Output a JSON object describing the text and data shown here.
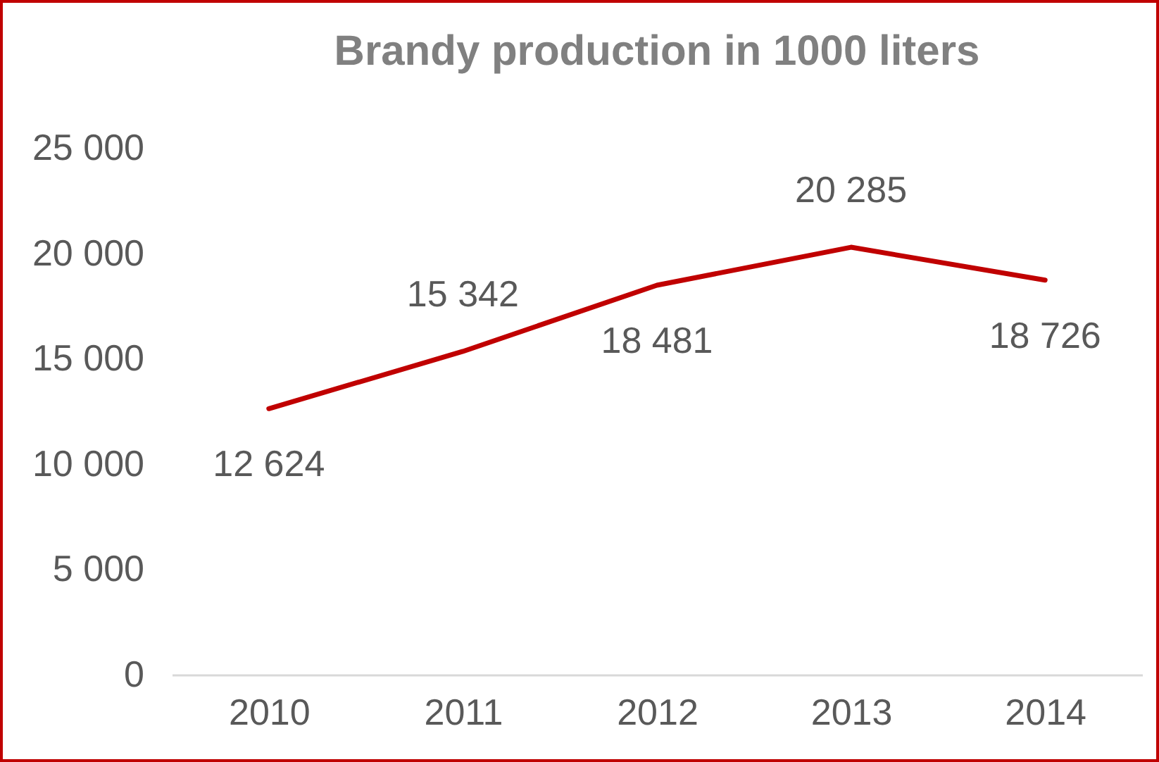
{
  "chart_data": {
    "type": "line",
    "title": "Brandy production in 1000 liters",
    "categories": [
      "2010",
      "2011",
      "2012",
      "2013",
      "2014"
    ],
    "series": [
      {
        "color": "#c00000",
        "values": [
          12624,
          15342,
          18481,
          20285,
          18726
        ],
        "value_labels": [
          "12 624",
          "15 342",
          "18 481",
          "20 285",
          "18 726"
        ]
      }
    ],
    "ylim": [
      0,
      25000
    ],
    "yticks": [
      {
        "value": 0,
        "label": "0"
      },
      {
        "value": 5000,
        "label": "5 000"
      },
      {
        "value": 10000,
        "label": "10 000"
      },
      {
        "value": 15000,
        "label": "15 000"
      },
      {
        "value": 20000,
        "label": "20 000"
      },
      {
        "value": 25000,
        "label": "25 000"
      }
    ],
    "grid": false,
    "legend": false,
    "marker": "none",
    "line_style": "solid"
  }
}
